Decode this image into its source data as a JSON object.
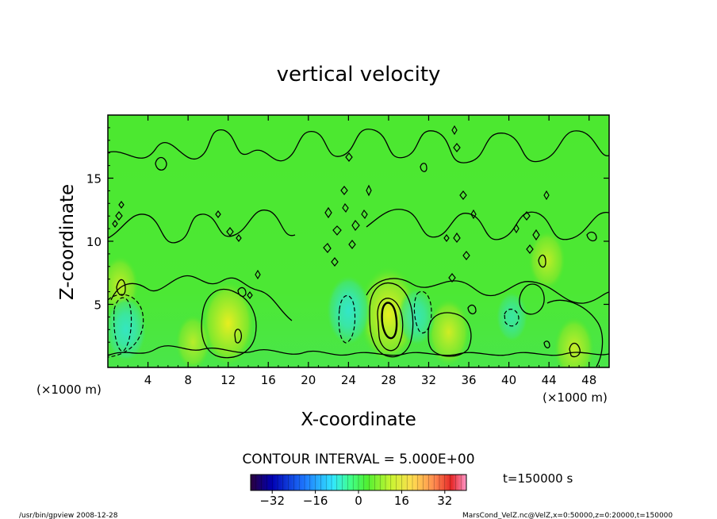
{
  "chart_data": {
    "type": "heatmap",
    "title": "vertical velocity",
    "xlabel": "X-coordinate",
    "ylabel": "Z-coordinate",
    "xlim": [
      0,
      50
    ],
    "ylim": [
      0,
      20
    ],
    "x_ticks": [
      4,
      8,
      12,
      16,
      20,
      24,
      28,
      32,
      36,
      40,
      44,
      48
    ],
    "y_ticks": [
      5,
      10,
      15
    ],
    "x_unit_left": "(×1000 m)",
    "x_unit_right": "(×1000 m)",
    "contour_interval_label": "CONTOUR INTERVAL = 5.000E+00",
    "time_label": "t=150000 s",
    "colorbar": {
      "range": [
        -40,
        40
      ],
      "ticks": [
        -32,
        -16,
        0,
        16,
        32
      ],
      "colors": [
        "#2a003c",
        "#0000b4",
        "#1e78ff",
        "#32e6ff",
        "#40ff8c",
        "#50f032",
        "#c8f532",
        "#ffdc50",
        "#ff8c50",
        "#e62828",
        "#ff96c8"
      ]
    },
    "features": [
      {
        "kind": "updraft",
        "x": 12,
        "z": 3.5,
        "peak": 12
      },
      {
        "kind": "updraft",
        "x": 28,
        "z": 4.2,
        "peak": 15
      },
      {
        "kind": "updraft",
        "x": 34,
        "z": 2.8,
        "peak": 8
      },
      {
        "kind": "updraft",
        "x": 8.5,
        "z": 2.0,
        "peak": 5
      },
      {
        "kind": "updraft",
        "x": 46.5,
        "z": 1.5,
        "peak": 7
      },
      {
        "kind": "updraft",
        "x": 1.2,
        "z": 6.5,
        "peak": 6
      },
      {
        "kind": "updraft",
        "x": 43.8,
        "z": 8.5,
        "peak": 6
      },
      {
        "kind": "downdraft",
        "x": 1.8,
        "z": 3.0,
        "peak": -8
      },
      {
        "kind": "downdraft",
        "x": 24,
        "z": 4.5,
        "peak": -9
      },
      {
        "kind": "downdraft",
        "x": 30.8,
        "z": 4.0,
        "peak": -6
      },
      {
        "kind": "downdraft",
        "x": 40.3,
        "z": 4.0,
        "peak": -4
      }
    ]
  },
  "footer": {
    "left": "/usr/bin/gpview   2008-12-28",
    "right": "MarsCond_VelZ.nc@VelZ,x=0:50000,z=0:20000,t=150000"
  }
}
